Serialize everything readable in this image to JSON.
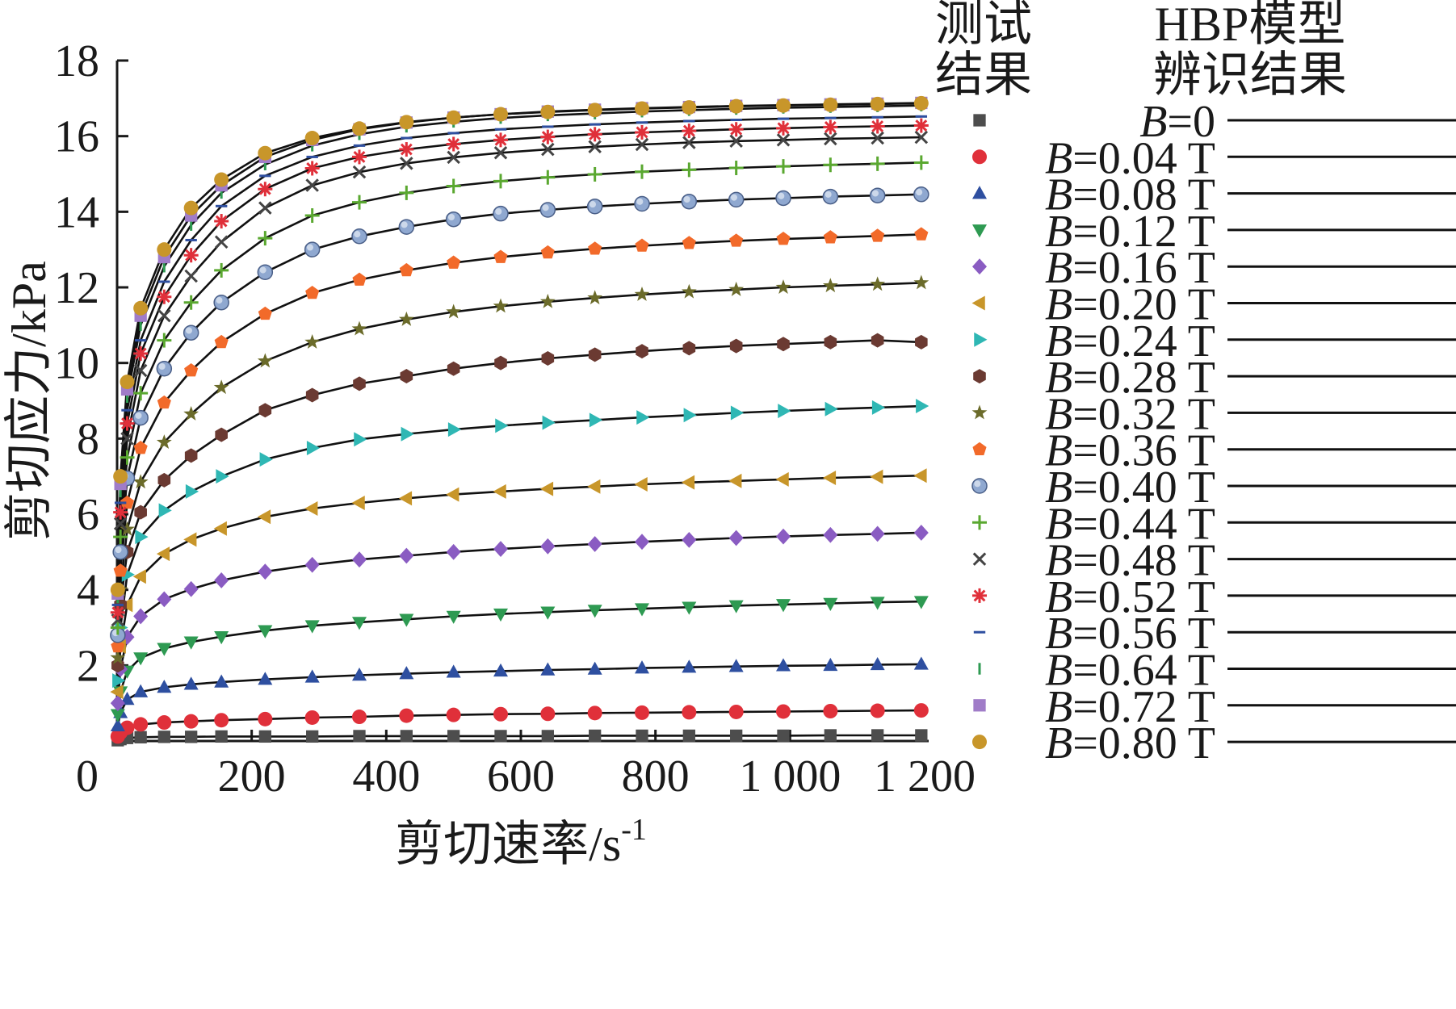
{
  "chart_data": {
    "type": "scatter",
    "xlabel": "剪切速率/s",
    "xlabel_sup": "-1",
    "ylabel": "剪切应力/kPa",
    "xlim": [
      0,
      1200
    ],
    "ylim": [
      0,
      18
    ],
    "x_ticks": [
      0,
      200,
      400,
      600,
      800,
      1000,
      1200
    ],
    "x_tick_labels": [
      "0",
      "200",
      "400",
      "600",
      "800",
      "1 000",
      "1 200"
    ],
    "y_ticks": [
      2,
      4,
      6,
      8,
      10,
      12,
      14,
      16,
      18
    ],
    "y_tick_labels": [
      "2",
      "4",
      "6",
      "8",
      "10",
      "12",
      "14",
      "16",
      "18"
    ],
    "grid": false,
    "legend": {
      "placement": "right",
      "header_markers": [
        "测试",
        "结果"
      ],
      "header_lines": [
        "HBP模型",
        "辨识结果"
      ]
    },
    "fit_line_color": "#111111",
    "x": [
      1,
      5,
      15,
      35,
      70,
      110,
      155,
      220,
      290,
      360,
      430,
      500,
      570,
      640,
      710,
      780,
      850,
      920,
      990,
      1060,
      1130,
      1195
    ],
    "series": [
      {
        "name": "B=0",
        "field": "0",
        "unit": "",
        "marker": "square",
        "color": "#4d4d4d",
        "values": [
          0.02,
          0.05,
          0.08,
          0.1,
          0.11,
          0.11,
          0.12,
          0.12,
          0.12,
          0.13,
          0.13,
          0.13,
          0.13,
          0.13,
          0.14,
          0.14,
          0.14,
          0.14,
          0.14,
          0.15,
          0.15,
          0.15
        ],
        "fit": [
          0.02,
          0.05,
          0.08,
          0.1,
          0.11,
          0.11,
          0.12,
          0.12,
          0.12,
          0.13,
          0.13,
          0.13,
          0.13,
          0.13,
          0.14,
          0.14,
          0.14,
          0.14,
          0.14,
          0.15,
          0.15,
          0.15
        ]
      },
      {
        "name": "B=0.04 T",
        "field": "0.04",
        "unit": " T",
        "marker": "circle",
        "color": "#e0303a",
        "values": [
          0.12,
          0.22,
          0.35,
          0.44,
          0.49,
          0.52,
          0.55,
          0.58,
          0.62,
          0.64,
          0.67,
          0.69,
          0.71,
          0.72,
          0.74,
          0.75,
          0.76,
          0.77,
          0.78,
          0.79,
          0.8,
          0.81
        ],
        "fit": [
          0.12,
          0.22,
          0.35,
          0.44,
          0.49,
          0.52,
          0.55,
          0.58,
          0.62,
          0.64,
          0.67,
          0.69,
          0.71,
          0.72,
          0.74,
          0.75,
          0.76,
          0.77,
          0.78,
          0.79,
          0.8,
          0.81
        ]
      },
      {
        "name": "B=0.08 T",
        "field": "0.08",
        "unit": " T",
        "marker": "triangle-up",
        "color": "#2e4fa0",
        "values": [
          0.4,
          0.75,
          1.1,
          1.3,
          1.42,
          1.5,
          1.56,
          1.63,
          1.69,
          1.74,
          1.78,
          1.82,
          1.85,
          1.88,
          1.9,
          1.93,
          1.95,
          1.97,
          1.99,
          2.0,
          2.02,
          2.03
        ],
        "fit": [
          0.4,
          0.75,
          1.1,
          1.3,
          1.42,
          1.5,
          1.56,
          1.63,
          1.69,
          1.74,
          1.78,
          1.82,
          1.85,
          1.88,
          1.9,
          1.93,
          1.95,
          1.97,
          1.99,
          2.0,
          2.02,
          2.03
        ]
      },
      {
        "name": "B=0.12 T",
        "field": "0.12",
        "unit": " T",
        "marker": "triangle-down",
        "color": "#2e9a52",
        "values": [
          0.7,
          1.3,
          1.85,
          2.2,
          2.45,
          2.62,
          2.76,
          2.92,
          3.05,
          3.14,
          3.22,
          3.3,
          3.36,
          3.41,
          3.46,
          3.5,
          3.54,
          3.58,
          3.61,
          3.64,
          3.67,
          3.69
        ],
        "fit": [
          0.7,
          1.3,
          1.85,
          2.2,
          2.45,
          2.62,
          2.76,
          2.92,
          3.05,
          3.14,
          3.22,
          3.3,
          3.36,
          3.41,
          3.46,
          3.5,
          3.54,
          3.58,
          3.61,
          3.64,
          3.67,
          3.69
        ]
      },
      {
        "name": "B=0.16 T",
        "field": "0.16",
        "unit": " T",
        "marker": "diamond",
        "color": "#8a5cc2",
        "values": [
          1.0,
          1.9,
          2.75,
          3.3,
          3.75,
          4.02,
          4.25,
          4.48,
          4.66,
          4.8,
          4.9,
          5.0,
          5.08,
          5.15,
          5.21,
          5.27,
          5.32,
          5.37,
          5.41,
          5.45,
          5.48,
          5.51
        ],
        "fit": [
          1.0,
          1.9,
          2.75,
          3.3,
          3.75,
          4.02,
          4.25,
          4.48,
          4.66,
          4.8,
          4.9,
          5.0,
          5.08,
          5.15,
          5.21,
          5.27,
          5.32,
          5.37,
          5.41,
          5.45,
          5.48,
          5.51
        ]
      },
      {
        "name": "B=0.20 T",
        "field": "0.20",
        "unit": " T",
        "marker": "triangle-left",
        "color": "#c8962a",
        "values": [
          1.3,
          2.5,
          3.6,
          4.35,
          4.95,
          5.33,
          5.62,
          5.93,
          6.15,
          6.3,
          6.42,
          6.52,
          6.6,
          6.67,
          6.73,
          6.79,
          6.84,
          6.88,
          6.92,
          6.96,
          6.99,
          7.02
        ],
        "fit": [
          1.3,
          2.5,
          3.6,
          4.35,
          4.95,
          5.33,
          5.62,
          5.93,
          6.15,
          6.3,
          6.42,
          6.52,
          6.6,
          6.67,
          6.73,
          6.79,
          6.84,
          6.88,
          6.92,
          6.96,
          6.99,
          7.02
        ]
      },
      {
        "name": "B=0.24 T",
        "field": "0.24",
        "unit": " T",
        "marker": "triangle-right",
        "color": "#2fb7b4",
        "values": [
          1.6,
          3.0,
          4.4,
          5.4,
          6.1,
          6.6,
          7.0,
          7.45,
          7.75,
          7.98,
          8.12,
          8.24,
          8.34,
          8.42,
          8.49,
          8.56,
          8.62,
          8.68,
          8.73,
          8.78,
          8.82,
          8.86
        ],
        "fit": [
          1.6,
          3.0,
          4.4,
          5.4,
          6.1,
          6.6,
          7.0,
          7.45,
          7.75,
          7.98,
          8.12,
          8.24,
          8.34,
          8.42,
          8.49,
          8.56,
          8.62,
          8.68,
          8.73,
          8.78,
          8.82,
          8.86
        ]
      },
      {
        "name": "B=0.28 T",
        "field": "0.28",
        "unit": " T",
        "marker": "hexagon",
        "color": "#6b3a32",
        "values": [
          2.0,
          3.6,
          5.0,
          6.05,
          6.9,
          7.55,
          8.1,
          8.75,
          9.15,
          9.45,
          9.65,
          9.85,
          10.0,
          10.12,
          10.22,
          10.31,
          10.39,
          10.45,
          10.5,
          10.55,
          10.6,
          10.55
        ],
        "fit": [
          2.0,
          3.6,
          5.0,
          6.05,
          6.9,
          7.55,
          8.1,
          8.75,
          9.15,
          9.45,
          9.65,
          9.85,
          10.0,
          10.12,
          10.22,
          10.31,
          10.39,
          10.45,
          10.5,
          10.55,
          10.6,
          10.55
        ]
      },
      {
        "name": "B=0.32 T",
        "field": "0.32",
        "unit": " T",
        "marker": "star",
        "color": "#6b6b2a",
        "values": [
          2.2,
          4.0,
          5.6,
          6.85,
          7.9,
          8.65,
          9.35,
          10.05,
          10.55,
          10.9,
          11.15,
          11.35,
          11.5,
          11.62,
          11.72,
          11.81,
          11.88,
          11.94,
          12.0,
          12.04,
          12.08,
          12.12
        ],
        "fit": [
          2.2,
          4.0,
          5.6,
          6.85,
          7.9,
          8.65,
          9.35,
          10.05,
          10.55,
          10.9,
          11.15,
          11.35,
          11.5,
          11.62,
          11.72,
          11.81,
          11.88,
          11.94,
          12.0,
          12.04,
          12.08,
          12.12
        ]
      },
      {
        "name": "B=0.36 T",
        "field": "0.36",
        "unit": " T",
        "marker": "pentagon",
        "color": "#f26a2a",
        "values": [
          2.5,
          4.5,
          6.3,
          7.75,
          8.95,
          9.8,
          10.55,
          11.3,
          11.85,
          12.2,
          12.45,
          12.65,
          12.8,
          12.92,
          13.02,
          13.1,
          13.17,
          13.23,
          13.28,
          13.32,
          13.36,
          13.4
        ],
        "fit": [
          2.5,
          4.5,
          6.3,
          7.75,
          8.95,
          9.8,
          10.55,
          11.3,
          11.85,
          12.2,
          12.45,
          12.65,
          12.8,
          12.92,
          13.02,
          13.1,
          13.17,
          13.23,
          13.28,
          13.32,
          13.36,
          13.4
        ]
      },
      {
        "name": "B=0.40 T",
        "field": "0.40",
        "unit": " T",
        "marker": "sphere",
        "color": "#8fa8d0",
        "values": [
          2.8,
          5.0,
          6.95,
          8.55,
          9.85,
          10.8,
          11.6,
          12.4,
          13.0,
          13.35,
          13.6,
          13.8,
          13.95,
          14.05,
          14.14,
          14.21,
          14.27,
          14.32,
          14.36,
          14.4,
          14.43,
          14.46
        ],
        "fit": [
          2.8,
          5.0,
          6.95,
          8.55,
          9.85,
          10.8,
          11.6,
          12.4,
          13.0,
          13.35,
          13.6,
          13.8,
          13.95,
          14.05,
          14.14,
          14.21,
          14.27,
          14.32,
          14.36,
          14.4,
          14.43,
          14.46
        ]
      },
      {
        "name": "B=0.44 T",
        "field": "0.44",
        "unit": " T",
        "marker": "plus",
        "color": "#5aa830",
        "values": [
          3.0,
          5.4,
          7.5,
          9.2,
          10.6,
          11.6,
          12.45,
          13.3,
          13.9,
          14.25,
          14.5,
          14.68,
          14.81,
          14.91,
          14.99,
          15.06,
          15.11,
          15.16,
          15.2,
          15.24,
          15.27,
          15.3
        ],
        "fit": [
          3.0,
          5.4,
          7.5,
          9.2,
          10.6,
          11.6,
          12.45,
          13.3,
          13.9,
          14.25,
          14.5,
          14.68,
          14.81,
          14.91,
          14.99,
          15.06,
          15.11,
          15.16,
          15.2,
          15.24,
          15.27,
          15.3
        ]
      },
      {
        "name": "B=0.48 T",
        "field": "0.48",
        "unit": " T",
        "marker": "cross",
        "color": "#444444",
        "values": [
          3.2,
          5.75,
          8.0,
          9.8,
          11.25,
          12.3,
          13.2,
          14.1,
          14.7,
          15.05,
          15.28,
          15.44,
          15.56,
          15.65,
          15.72,
          15.78,
          15.83,
          15.87,
          15.9,
          15.93,
          15.95,
          15.97
        ],
        "fit": [
          3.2,
          5.75,
          8.0,
          9.8,
          11.25,
          12.3,
          13.2,
          14.1,
          14.7,
          15.05,
          15.28,
          15.44,
          15.56,
          15.65,
          15.72,
          15.78,
          15.83,
          15.87,
          15.9,
          15.93,
          15.95,
          15.97
        ]
      },
      {
        "name": "B=0.52 T",
        "field": "0.52",
        "unit": " T",
        "marker": "asterisk",
        "color": "#e0303a",
        "values": [
          3.4,
          6.05,
          8.4,
          10.25,
          11.75,
          12.85,
          13.75,
          14.6,
          15.15,
          15.45,
          15.65,
          15.79,
          15.9,
          15.98,
          16.05,
          16.1,
          16.14,
          16.18,
          16.21,
          16.24,
          16.26,
          16.28
        ],
        "fit": [
          3.4,
          6.05,
          8.4,
          10.25,
          11.75,
          12.85,
          13.75,
          14.6,
          15.15,
          15.45,
          15.65,
          15.79,
          15.9,
          15.98,
          16.05,
          16.1,
          16.14,
          16.18,
          16.21,
          16.24,
          16.26,
          16.28
        ]
      },
      {
        "name": "B=0.56 T",
        "field": "0.56",
        "unit": " T",
        "marker": "hline",
        "color": "#2e4fa0",
        "values": [
          3.6,
          6.3,
          8.75,
          10.6,
          12.15,
          13.25,
          14.15,
          14.95,
          15.45,
          15.75,
          15.95,
          16.08,
          16.18,
          16.25,
          16.31,
          16.36,
          16.4,
          16.43,
          16.46,
          16.48,
          16.5,
          16.52
        ],
        "fit": [
          3.6,
          6.3,
          8.75,
          10.6,
          12.15,
          13.25,
          14.15,
          14.95,
          15.45,
          15.75,
          15.95,
          16.08,
          16.18,
          16.25,
          16.31,
          16.36,
          16.4,
          16.43,
          16.46,
          16.48,
          16.5,
          16.52
        ]
      },
      {
        "name": "B=0.64 T",
        "field": "0.64",
        "unit": " T",
        "marker": "vline",
        "color": "#2e9a52",
        "values": [
          3.8,
          6.6,
          9.1,
          11.0,
          12.55,
          13.65,
          14.5,
          15.25,
          15.75,
          16.05,
          16.25,
          16.38,
          16.48,
          16.55,
          16.6,
          16.65,
          16.69,
          16.72,
          16.75,
          16.77,
          16.79,
          16.81
        ],
        "fit": [
          3.8,
          6.6,
          9.1,
          11.0,
          12.55,
          13.65,
          14.5,
          15.25,
          15.75,
          16.05,
          16.25,
          16.38,
          16.48,
          16.55,
          16.6,
          16.65,
          16.69,
          16.72,
          16.75,
          16.77,
          16.79,
          16.81
        ]
      },
      {
        "name": "B=0.72 T",
        "field": "0.72",
        "unit": " T",
        "marker": "square",
        "color": "#a07cc8",
        "values": [
          3.9,
          6.8,
          9.3,
          11.25,
          12.8,
          13.9,
          14.7,
          15.45,
          15.9,
          16.18,
          16.36,
          16.49,
          16.58,
          16.65,
          16.7,
          16.74,
          16.77,
          16.8,
          16.82,
          16.84,
          16.86,
          16.88
        ],
        "fit": [
          3.9,
          6.8,
          9.3,
          11.25,
          12.8,
          13.9,
          14.7,
          15.45,
          15.9,
          16.18,
          16.36,
          16.49,
          16.58,
          16.65,
          16.7,
          16.74,
          16.77,
          16.8,
          16.82,
          16.84,
          16.86,
          16.88
        ]
      },
      {
        "name": "B=0.80 T",
        "field": "0.80",
        "unit": " T",
        "marker": "circle",
        "color": "#c8962a",
        "values": [
          4.0,
          7.0,
          9.5,
          11.45,
          13.0,
          14.1,
          14.85,
          15.55,
          15.95,
          16.2,
          16.37,
          16.49,
          16.58,
          16.64,
          16.69,
          16.73,
          16.76,
          16.79,
          16.81,
          16.83,
          16.85,
          16.87
        ],
        "fit": [
          4.0,
          7.0,
          9.5,
          11.45,
          13.0,
          14.1,
          14.85,
          15.55,
          15.95,
          16.2,
          16.37,
          16.49,
          16.58,
          16.64,
          16.69,
          16.73,
          16.76,
          16.79,
          16.81,
          16.83,
          16.85,
          16.87
        ]
      }
    ]
  }
}
